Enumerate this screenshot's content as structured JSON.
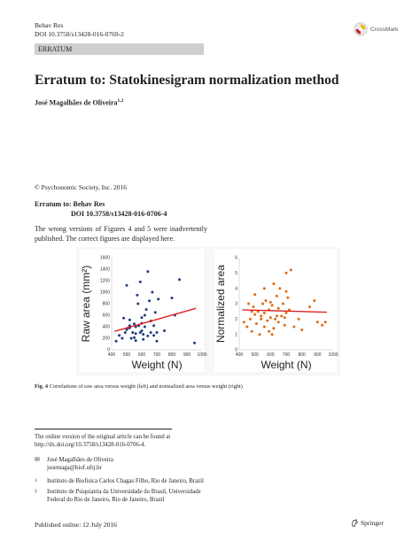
{
  "header": {
    "journal": "Behav Res",
    "doi": "DOI 10.3758/s13428-016-0769-2",
    "crossmark_label": "CrossMark"
  },
  "section_label": "ERRATUM",
  "title": "Erratum to: Statokinesigram normalization method",
  "author": {
    "name": "José Magalhães de Oliveira",
    "affiliations": "1,2"
  },
  "copyright": "© Psychonomic Society, Inc. 2016",
  "erratum_ref": {
    "line1": "Erratum to: Behav Res",
    "line2": "DOI 10.3758/s13428-016-0706-4"
  },
  "body_text": "The wrong versions of Figures 4 and 5 were inadvertently published. The correct figures are displayed here.",
  "figure": {
    "caption_label": "Fig. 4",
    "caption_text": "Correlations of raw area versus weight (left) and normalized area versus weight (right)"
  },
  "chart_data": [
    {
      "type": "scatter",
      "title": "",
      "xlabel": "Weight (N)",
      "ylabel": "Raw area (mm²)",
      "xlim": [
        400,
        1000
      ],
      "ylim": [
        0,
        1600
      ],
      "xticks": [
        "400",
        "500",
        "600",
        "700",
        "800",
        "900",
        "1000"
      ],
      "yticks": [
        "0",
        "200",
        "400",
        "600",
        "800",
        "1000",
        "1200",
        "1400",
        "1600"
      ],
      "grid": false,
      "marker_color": "#1f3f7a",
      "trend_color": "#e02020",
      "trendline": {
        "x": [
          420,
          960
        ],
        "y": [
          320,
          720
        ]
      },
      "x": [
        430,
        450,
        470,
        480,
        490,
        500,
        500,
        510,
        520,
        520,
        530,
        540,
        550,
        550,
        560,
        560,
        570,
        575,
        580,
        590,
        590,
        600,
        600,
        610,
        610,
        620,
        620,
        630,
        640,
        650,
        660,
        660,
        670,
        680,
        680,
        690,
        700,
        700,
        710,
        750,
        800,
        820,
        850,
        950,
        640,
        560,
        520,
        600
      ],
      "y": [
        150,
        250,
        200,
        550,
        300,
        350,
        1120,
        380,
        380,
        420,
        200,
        300,
        450,
        210,
        400,
        280,
        950,
        800,
        420,
        1180,
        300,
        560,
        330,
        270,
        180,
        600,
        400,
        700,
        1360,
        850,
        500,
        300,
        1000,
        250,
        420,
        650,
        300,
        150,
        880,
        330,
        900,
        600,
        1220,
        120,
        240,
        160,
        520,
        460
      ]
    },
    {
      "type": "scatter",
      "title": "",
      "xlabel": "Weight (N)",
      "ylabel": "Normalized area",
      "xlim": [
        400,
        1000
      ],
      "ylim": [
        0,
        6
      ],
      "xticks": [
        "400",
        "500",
        "600",
        "700",
        "800",
        "900",
        "1000"
      ],
      "yticks": [
        "0",
        "1",
        "2",
        "3",
        "4",
        "5",
        "6"
      ],
      "grid": false,
      "marker_color": "#e06a10",
      "trend_color": "#e02020",
      "trendline": {
        "x": [
          420,
          960
        ],
        "y": [
          2.6,
          2.45
        ]
      },
      "x": [
        430,
        450,
        460,
        470,
        480,
        490,
        500,
        500,
        510,
        520,
        530,
        540,
        550,
        560,
        560,
        570,
        580,
        590,
        590,
        600,
        600,
        610,
        620,
        620,
        630,
        640,
        650,
        650,
        660,
        670,
        680,
        690,
        700,
        700,
        710,
        720,
        730,
        750,
        780,
        800,
        850,
        900,
        930,
        950,
        560,
        640,
        700,
        540,
        610,
        480,
        690,
        880
      ],
      "y": [
        1.8,
        1.5,
        3.0,
        2.0,
        1.2,
        2.8,
        3.6,
        2.3,
        1.7,
        2.5,
        1.0,
        2.2,
        3.0,
        1.5,
        4.0,
        3.2,
        1.9,
        2.6,
        1.2,
        3.1,
        2.1,
        2.9,
        4.3,
        1.4,
        2.0,
        3.5,
        2.7,
        1.8,
        4.0,
        2.2,
        3.0,
        1.6,
        2.4,
        5.0,
        3.4,
        2.6,
        5.2,
        1.5,
        2.0,
        1.3,
        2.8,
        1.8,
        1.6,
        1.8,
        2.4,
        2.2,
        3.8,
        2.0,
        1.0,
        2.5,
        2.1,
        3.2
      ]
    }
  ],
  "footnotes": {
    "online_note": "The online version of the original article can be found at http://dx.doi.org/10.3758/s13428-016-0706-4.",
    "correspondence_name": "José Magalhães de Oliveira",
    "correspondence_email": "josemaga@biof.ufrj.br",
    "affiliation_1": {
      "num": "1",
      "text": "Instituto de Biofísica Carlos Chagas Filho, Rio de Janeiro, Brazil"
    },
    "affiliation_2": {
      "num": "2",
      "text_line1": "Instituto de Psiquiatria da Universidade do Brasil, Universidade",
      "text_line2": "Federal do Rio de Janeiro, Rio de Janeiro, Brazil"
    }
  },
  "published": "Published online: 12 July 2016",
  "publisher": "Springer"
}
